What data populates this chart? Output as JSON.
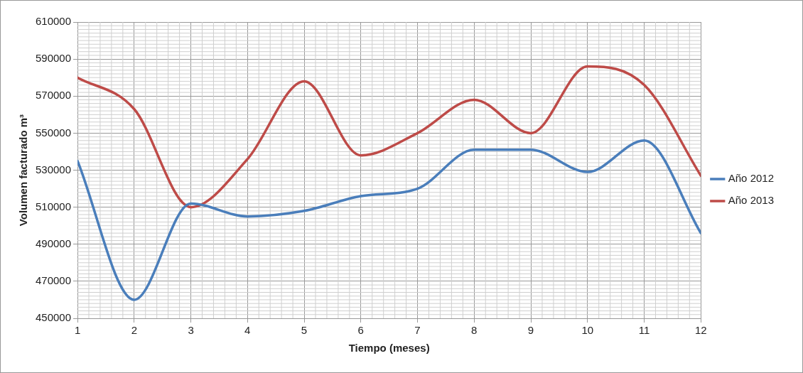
{
  "chart_data": {
    "type": "line",
    "xlabel": "Tiempo (meses)",
    "ylabel": "Volumen facturado m³",
    "x": [
      1,
      2,
      3,
      4,
      5,
      6,
      7,
      8,
      9,
      10,
      11,
      12
    ],
    "series": [
      {
        "name": "Año 2012",
        "color": "#4a7ebb",
        "values": [
          535000,
          460000,
          512000,
          505000,
          508000,
          516000,
          520000,
          541000,
          541000,
          529000,
          546000,
          496000
        ]
      },
      {
        "name": "Año 2013",
        "color": "#be4b48",
        "values": [
          580000,
          563000,
          510000,
          536000,
          578000,
          538000,
          550000,
          568000,
          550000,
          586000,
          576000,
          527000
        ]
      }
    ],
    "xlim": [
      1,
      12
    ],
    "xticks": [
      1,
      2,
      3,
      4,
      5,
      6,
      7,
      8,
      9,
      10,
      11,
      12
    ],
    "ylim": [
      450000,
      610000
    ],
    "yticks": [
      450000,
      470000,
      490000,
      510000,
      530000,
      550000,
      570000,
      590000,
      610000
    ],
    "grid": true,
    "legend": "right",
    "marker": "none",
    "line_style": "solid"
  }
}
